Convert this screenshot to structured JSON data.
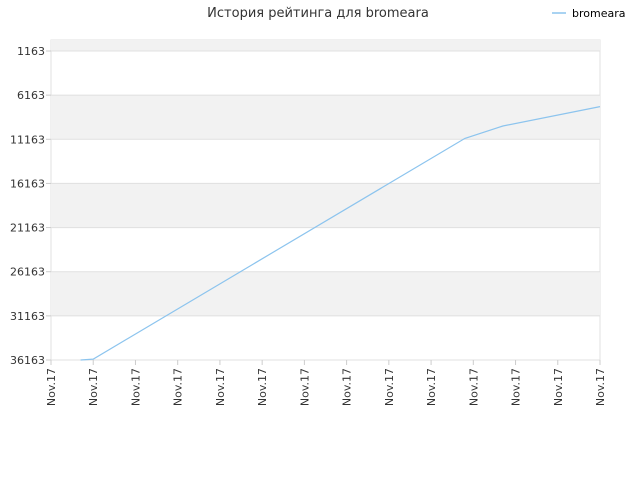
{
  "chart_data": {
    "type": "line",
    "title": "История рейтинга для bromeara",
    "xlabel": "",
    "ylabel": "",
    "y_inverted": true,
    "ylim": [
      1163,
      36163
    ],
    "y_ticks": [
      1163,
      6163,
      11163,
      16163,
      21163,
      26163,
      31163,
      36163
    ],
    "y_tick_labels": [
      "1163",
      "6163",
      "11163",
      "16163",
      "21163",
      "26163",
      "31163",
      "36163"
    ],
    "x_tick_labels": [
      "Nov.17",
      "Nov.17",
      "Nov.17",
      "Nov.17",
      "Nov.17",
      "Nov.17",
      "Nov.17",
      "Nov.17",
      "Nov.17",
      "Nov.17",
      "Nov.17",
      "Nov.17",
      "Nov.17",
      "Nov.17"
    ],
    "grid": true,
    "legend_position": "top-right",
    "colors": {
      "series": "#8cc4ee",
      "band": "#f2f2f2",
      "grid": "#e0e0e0"
    },
    "series": [
      {
        "name": "bromeara",
        "x": [
          0.7,
          1.0,
          9.8,
          10.7,
          13.0
        ],
        "y": [
          36163,
          36063,
          11063,
          9663,
          7463
        ]
      }
    ]
  }
}
